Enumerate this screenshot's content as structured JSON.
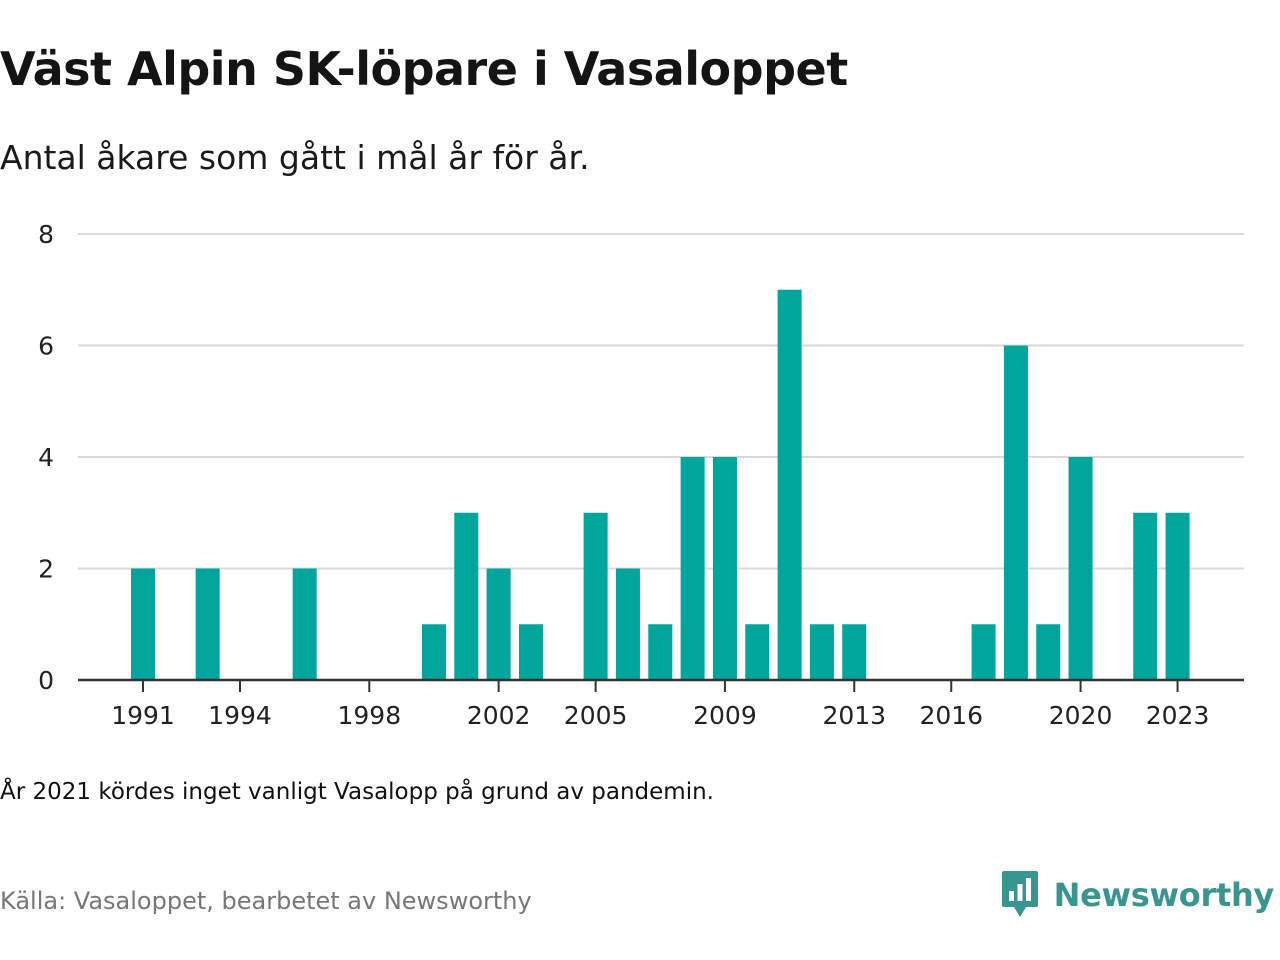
{
  "header": {
    "title": "Väst Alpin SK-löpare i Vasaloppet",
    "subtitle": "Antal åkare som gått i mål år för år."
  },
  "footer": {
    "note": "År 2021 kördes inget vanligt Vasalopp på grund av pandemin.",
    "source": "Källa: Vasaloppet, bearbetet av Newsworthy",
    "brand": "Newsworthy"
  },
  "colors": {
    "bar": "#00a59b",
    "grid": "#d9d9d9",
    "axis": "#333333",
    "brand": "#38958f"
  },
  "chart_data": {
    "type": "bar",
    "title": "Väst Alpin SK-löpare i Vasaloppet",
    "subtitle": "Antal åkare som gått i mål år för år.",
    "xlabel": "",
    "ylabel": "",
    "x": [
      1991,
      1992,
      1993,
      1994,
      1995,
      1996,
      1997,
      1998,
      1999,
      2000,
      2001,
      2002,
      2003,
      2004,
      2005,
      2006,
      2007,
      2008,
      2009,
      2010,
      2011,
      2012,
      2013,
      2014,
      2015,
      2016,
      2017,
      2018,
      2019,
      2020,
      2021,
      2022,
      2023
    ],
    "values": [
      2,
      0,
      2,
      0,
      0,
      2,
      0,
      0,
      0,
      1,
      3,
      2,
      1,
      0,
      3,
      2,
      1,
      4,
      4,
      1,
      7,
      1,
      1,
      0,
      0,
      0,
      1,
      6,
      1,
      4,
      0,
      3,
      3
    ],
    "x_ticks": [
      "1991",
      "1994",
      "1998",
      "2002",
      "2005",
      "2009",
      "2013",
      "2016",
      "2020",
      "2023"
    ],
    "y_ticks": [
      "0",
      "2",
      "4",
      "6",
      "8"
    ],
    "ylim": [
      0,
      8
    ],
    "grid": true,
    "legend": "none"
  }
}
